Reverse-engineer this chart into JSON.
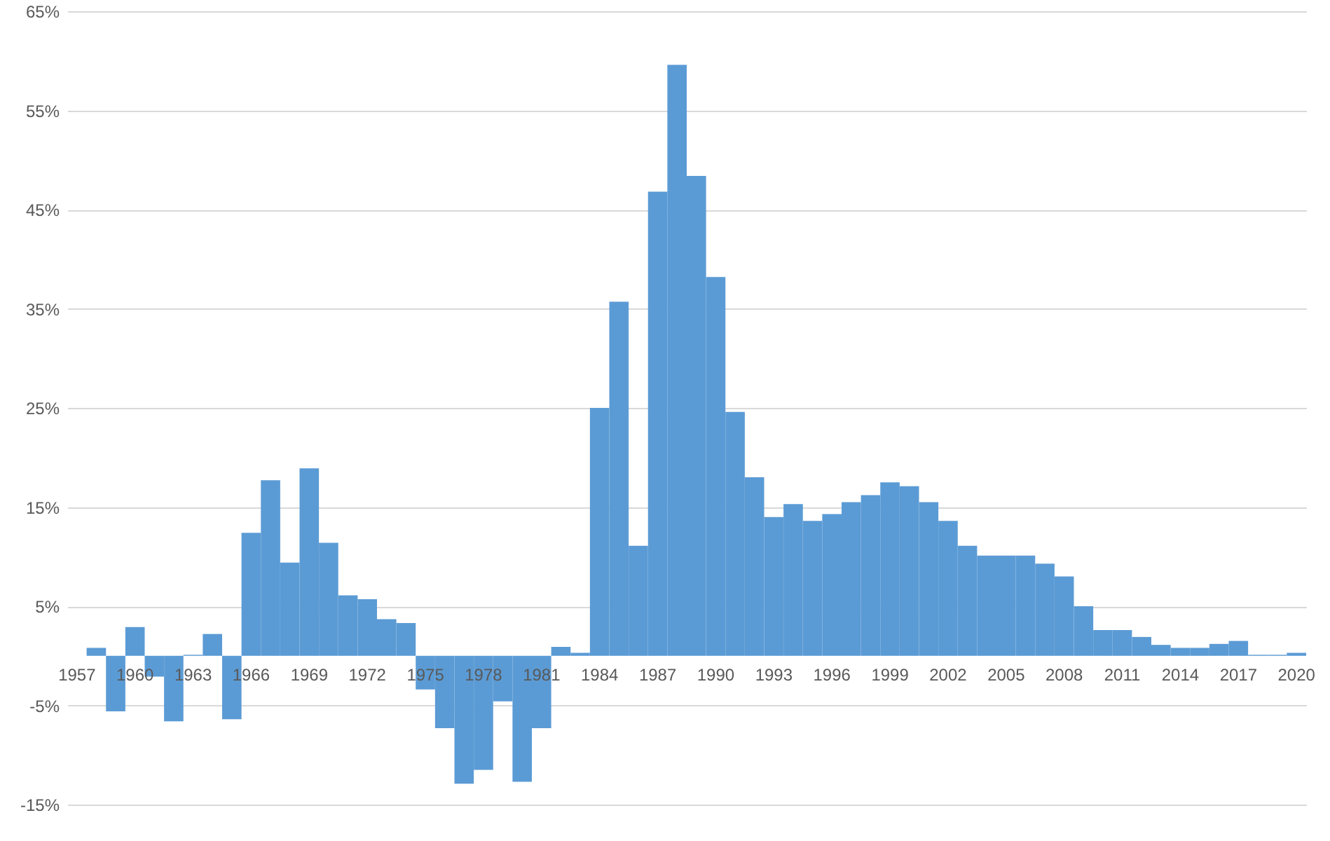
{
  "chart_data": {
    "type": "bar",
    "categories": [
      "1957",
      null,
      null,
      "1960",
      null,
      null,
      "1963",
      null,
      null,
      "1966",
      null,
      null,
      "1969",
      null,
      null,
      "1972",
      null,
      null,
      "1975",
      null,
      null,
      "1978",
      null,
      null,
      "1981",
      null,
      null,
      "1984",
      null,
      null,
      "1987",
      null,
      null,
      "1990",
      null,
      null,
      "1993",
      null,
      null,
      "1996",
      null,
      null,
      "1999",
      null,
      null,
      "2002",
      null,
      null,
      "2005",
      null,
      null,
      "2008",
      null,
      null,
      "2011",
      null,
      null,
      "2014",
      null,
      null,
      "2017",
      null,
      null,
      "2020"
    ],
    "values": [
      0,
      0.8,
      -5.6,
      2.9,
      -2.1,
      -6.6,
      0.1,
      2.2,
      -6.4,
      12.4,
      17.7,
      9.4,
      18.9,
      11.4,
      6.1,
      5.7,
      3.7,
      3.3,
      -3.4,
      -7.3,
      -12.9,
      -11.5,
      -4.6,
      -12.7,
      -7.3,
      0.9,
      0.3,
      25.0,
      35.7,
      11.1,
      46.8,
      59.6,
      48.4,
      38.2,
      24.6,
      18.0,
      14.0,
      15.3,
      13.6,
      14.3,
      15.5,
      16.2,
      17.5,
      17.1,
      15.5,
      13.6,
      11.1,
      10.1,
      10.1,
      10.1,
      9.3,
      8.0,
      5.0,
      2.6,
      2.6,
      1.9,
      1.1,
      0.8,
      0.8,
      1.2,
      1.5,
      0.1,
      0.1,
      0.3
    ],
    "color": "#5b9bd5",
    "ylim": [
      -15,
      65
    ],
    "yticks": [
      {
        "value": -15,
        "label": "-15%"
      },
      {
        "value": -5,
        "label": "-5%"
      },
      {
        "value": 5,
        "label": "5%"
      },
      {
        "value": 15,
        "label": "15%"
      },
      {
        "value": 25,
        "label": "25%"
      },
      {
        "value": 35,
        "label": "35%"
      },
      {
        "value": 45,
        "label": "45%"
      },
      {
        "value": 55,
        "label": "55%"
      },
      {
        "value": 65,
        "label": "65%"
      }
    ],
    "grid": "y"
  }
}
